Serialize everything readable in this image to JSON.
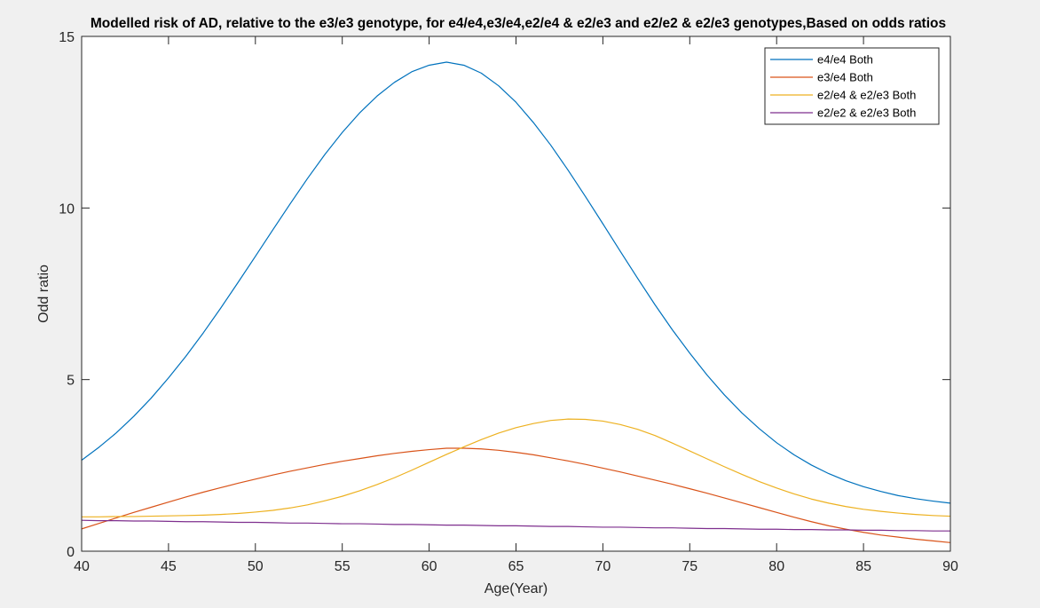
{
  "chart_data": {
    "type": "line",
    "title": "Modelled risk of AD, relative to the e3/e3 genotype, for e4/e4,e3/e4,e2/e4 & e2/e3 and e2/e2 & e2/e3 genotypes,Based on odds ratios",
    "xlabel": "Age(Year)",
    "ylabel": "Odd ratio",
    "xlim": [
      40,
      90
    ],
    "ylim": [
      0,
      15
    ],
    "xticks": [
      40,
      45,
      50,
      55,
      60,
      65,
      70,
      75,
      80,
      85,
      90
    ],
    "yticks": [
      0,
      5,
      10,
      15
    ],
    "grid": false,
    "legend_position": "top-right",
    "x": [
      40,
      41,
      42,
      43,
      44,
      45,
      46,
      47,
      48,
      49,
      50,
      51,
      52,
      53,
      54,
      55,
      56,
      57,
      58,
      59,
      60,
      61,
      62,
      63,
      64,
      65,
      66,
      67,
      68,
      69,
      70,
      71,
      72,
      73,
      74,
      75,
      76,
      77,
      78,
      79,
      80,
      81,
      82,
      83,
      84,
      85,
      86,
      87,
      88,
      89,
      90
    ],
    "series": [
      {
        "name": "e4/e4 Both",
        "color": "#0072BD",
        "values": [
          2.65,
          3.03,
          3.45,
          3.93,
          4.46,
          5.05,
          5.68,
          6.36,
          7.08,
          7.83,
          8.59,
          9.36,
          10.12,
          10.86,
          11.56,
          12.2,
          12.77,
          13.26,
          13.66,
          13.97,
          14.16,
          14.25,
          14.16,
          13.93,
          13.56,
          13.08,
          12.49,
          11.83,
          11.1,
          10.33,
          9.54,
          8.74,
          7.95,
          7.18,
          6.45,
          5.77,
          5.13,
          4.55,
          4.03,
          3.57,
          3.16,
          2.81,
          2.51,
          2.26,
          2.05,
          1.88,
          1.74,
          1.62,
          1.53,
          1.46,
          1.4
        ]
      },
      {
        "name": "e3/e4 Both",
        "color": "#D95319",
        "values": [
          0.65,
          0.81,
          0.97,
          1.13,
          1.28,
          1.43,
          1.58,
          1.72,
          1.85,
          1.98,
          2.1,
          2.22,
          2.33,
          2.43,
          2.53,
          2.62,
          2.7,
          2.78,
          2.85,
          2.91,
          2.96,
          3.0,
          3.0,
          2.98,
          2.94,
          2.88,
          2.81,
          2.72,
          2.63,
          2.53,
          2.42,
          2.31,
          2.19,
          2.07,
          1.95,
          1.82,
          1.69,
          1.55,
          1.41,
          1.27,
          1.13,
          0.99,
          0.86,
          0.74,
          0.64,
          0.55,
          0.47,
          0.41,
          0.35,
          0.3,
          0.25
        ]
      },
      {
        "name": "e2/e4 & e2/e3 Both",
        "color": "#EDB120",
        "values": [
          1.0,
          1.0,
          1.01,
          1.01,
          1.02,
          1.03,
          1.04,
          1.05,
          1.07,
          1.1,
          1.14,
          1.19,
          1.26,
          1.35,
          1.47,
          1.6,
          1.76,
          1.94,
          2.14,
          2.36,
          2.59,
          2.82,
          3.04,
          3.25,
          3.44,
          3.6,
          3.72,
          3.81,
          3.85,
          3.84,
          3.79,
          3.69,
          3.55,
          3.37,
          3.15,
          2.92,
          2.69,
          2.46,
          2.24,
          2.03,
          1.84,
          1.67,
          1.52,
          1.4,
          1.3,
          1.22,
          1.16,
          1.11,
          1.07,
          1.04,
          1.02
        ]
      },
      {
        "name": "e2/e2 & e2/e3 Both",
        "color": "#7E2F8E",
        "values": [
          0.9,
          0.89,
          0.89,
          0.88,
          0.88,
          0.87,
          0.86,
          0.86,
          0.85,
          0.84,
          0.84,
          0.83,
          0.82,
          0.82,
          0.81,
          0.8,
          0.8,
          0.79,
          0.78,
          0.78,
          0.77,
          0.76,
          0.76,
          0.75,
          0.74,
          0.74,
          0.73,
          0.72,
          0.72,
          0.71,
          0.7,
          0.7,
          0.69,
          0.68,
          0.68,
          0.67,
          0.66,
          0.66,
          0.65,
          0.64,
          0.64,
          0.63,
          0.63,
          0.62,
          0.62,
          0.61,
          0.61,
          0.6,
          0.6,
          0.59,
          0.59
        ]
      }
    ]
  }
}
